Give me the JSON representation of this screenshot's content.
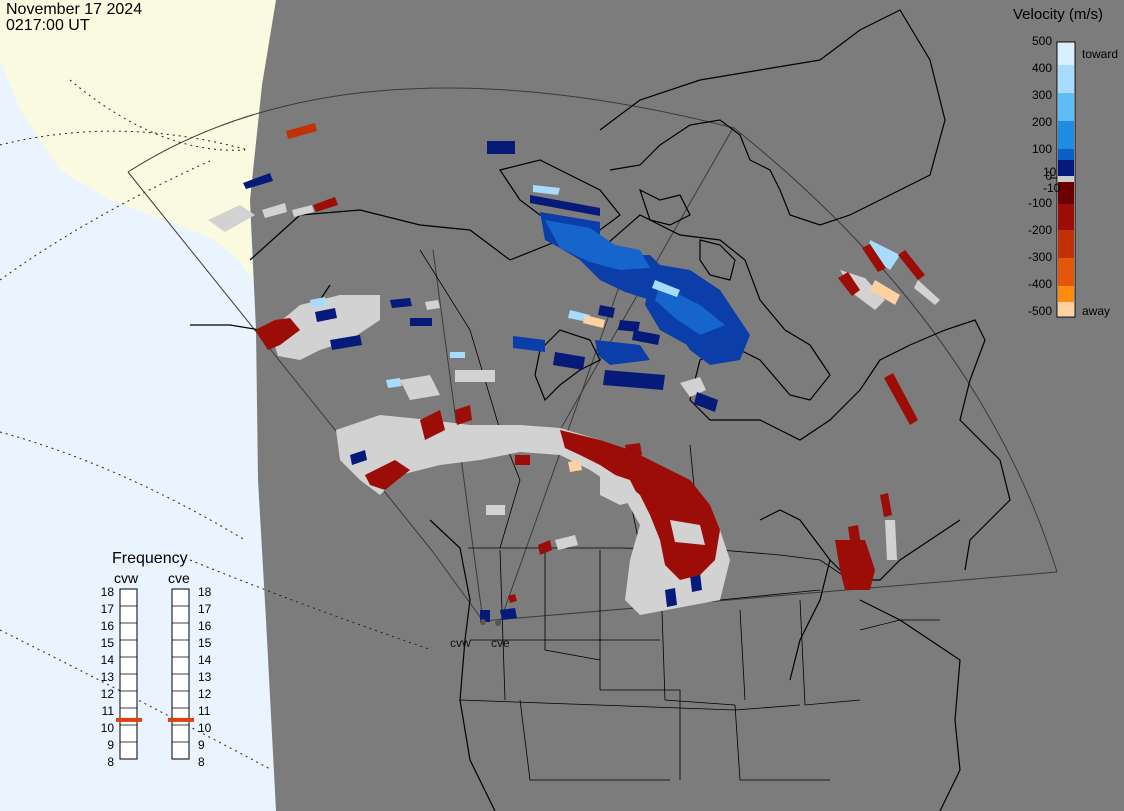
{
  "header": {
    "date": "November 17 2024",
    "time": "0217:00 UT"
  },
  "velocity_legend": {
    "title": "Velocity (m/s)",
    "positive_ticks": [
      "500",
      "400",
      "300",
      "200",
      "100",
      "10",
      "0"
    ],
    "negative_ticks": [
      "-10",
      "-100",
      "-200",
      "-300",
      "-400",
      "-500"
    ],
    "toward_label": "toward",
    "away_label": "away",
    "toward_colors": [
      "#d8efff",
      "#a8dcff",
      "#5ebcf6",
      "#1e8ce0",
      "#0a5fc6",
      "#0a3ca0",
      "#061a7a"
    ],
    "away_colors": [
      "#6a0000",
      "#9b0d06",
      "#c23008",
      "#e4570a",
      "#ff8a10",
      "#ffd0a0"
    ]
  },
  "frequency_panel": {
    "title": "Frequency",
    "left_label": "cvw",
    "right_label": "cve",
    "scale": [
      "18",
      "17",
      "16",
      "15",
      "14",
      "13",
      "12",
      "11",
      "10",
      "9",
      "8"
    ],
    "cvw_mhz": 10.8,
    "cve_mhz": 10.8,
    "marker_color": "#e04010"
  },
  "radar_sites": {
    "west_label": "cvw",
    "east_label": "cve"
  },
  "map_colors": {
    "land": "#7c7c7c",
    "ocean_beyond": "#e9f4ff",
    "polar_cap": "#fafae0",
    "ground_scatter": "#d2d2d2"
  }
}
